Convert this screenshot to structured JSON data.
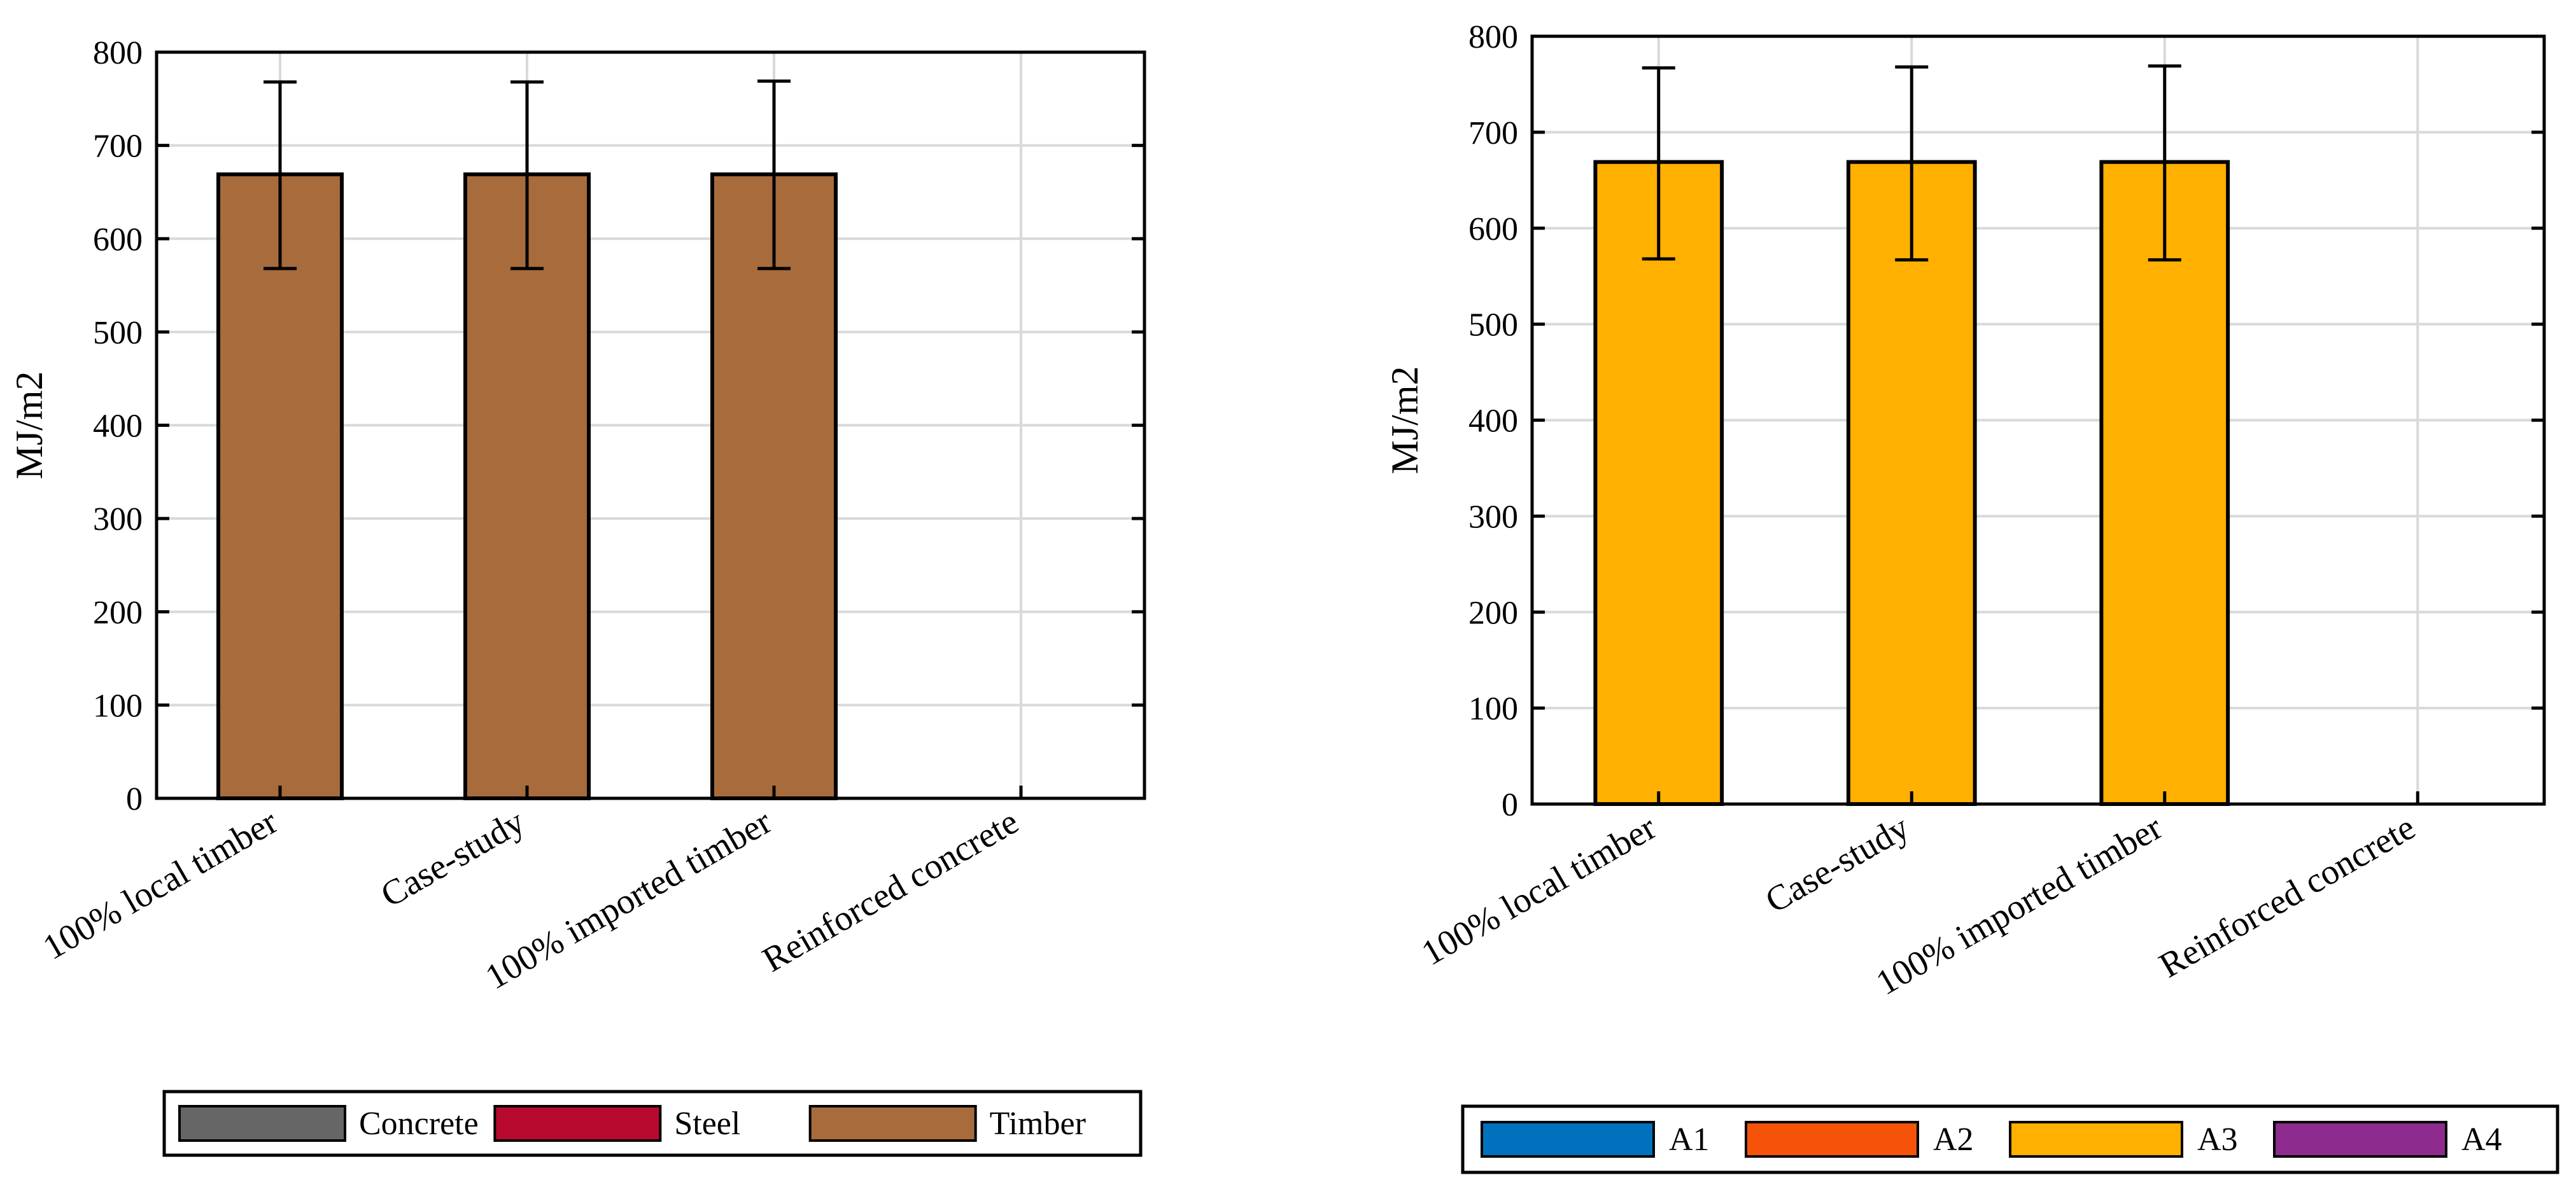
{
  "chart_data": [
    {
      "type": "bar",
      "title": "",
      "xlabel": "",
      "ylabel": "MJ/m2",
      "ylim": [
        0,
        800
      ],
      "yticks": [
        0,
        100,
        200,
        300,
        400,
        500,
        600,
        700,
        800
      ],
      "grid": true,
      "categories": [
        "100% local timber",
        "Case-study",
        "100% imported timber",
        "Reinforced concrete"
      ],
      "series": [
        {
          "name": "Concrete",
          "color": "#666666",
          "values": [
            0,
            0,
            0,
            0
          ]
        },
        {
          "name": "Steel",
          "color": "#b80a2e",
          "values": [
            0,
            0,
            0,
            0
          ]
        },
        {
          "name": "Timber",
          "color": "#a86b3c",
          "values": [
            669,
            669,
            669,
            0
          ]
        }
      ],
      "error_bars": {
        "lower": [
          568,
          568,
          568,
          null
        ],
        "upper": [
          768,
          768,
          769,
          null
        ]
      },
      "legend": {
        "placement": "bottom",
        "entries": [
          "Concrete",
          "Steel",
          "Timber"
        ]
      }
    },
    {
      "type": "bar",
      "title": "",
      "xlabel": "",
      "ylabel": "MJ/m2",
      "ylim": [
        0,
        800
      ],
      "yticks": [
        0,
        100,
        200,
        300,
        400,
        500,
        600,
        700,
        800
      ],
      "grid": true,
      "categories": [
        "100% local timber",
        "Case-study",
        "100% imported timber",
        "Reinforced concrete"
      ],
      "series": [
        {
          "name": "A1",
          "color": "#0072bd",
          "values": [
            0,
            0,
            0,
            0
          ]
        },
        {
          "name": "A2",
          "color": "#f5520a",
          "values": [
            0,
            0,
            0,
            0
          ]
        },
        {
          "name": "A3",
          "color": "#ffb000",
          "values": [
            669,
            669,
            669,
            0
          ]
        },
        {
          "name": "A4",
          "color": "#8e2b8e",
          "values": [
            0,
            0,
            0,
            0
          ]
        }
      ],
      "error_bars": {
        "lower": [
          568,
          567,
          567,
          null
        ],
        "upper": [
          767,
          768,
          769,
          null
        ]
      },
      "legend": {
        "placement": "bottom",
        "entries": [
          "A1",
          "A2",
          "A3",
          "A4"
        ]
      }
    }
  ]
}
